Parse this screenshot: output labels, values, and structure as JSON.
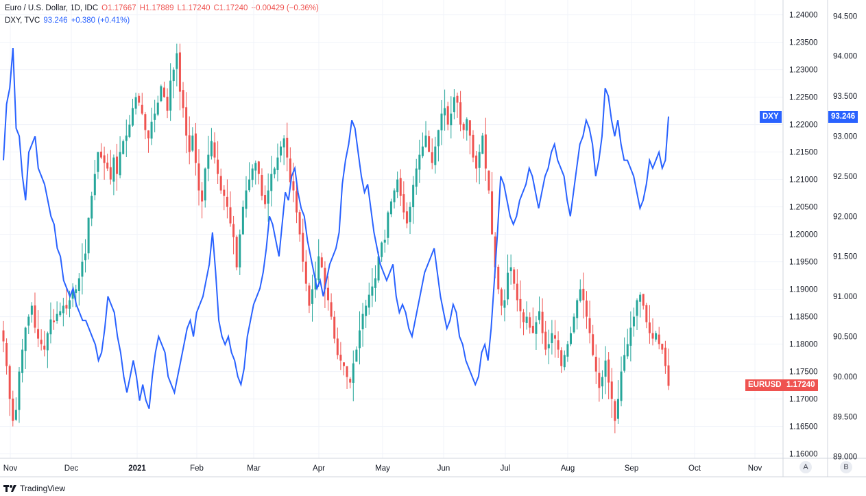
{
  "legend_eurusd": {
    "name": "Euro / U.S. Dollar, 1D, IDC",
    "open": "O1.17667",
    "high": "H1.17889",
    "low": "L1.17240",
    "close": "C1.17240",
    "change": "−0.00429 (−0.36%)"
  },
  "legend_dxy": {
    "name": "DXY, TVC",
    "value": "93.246",
    "change": "+0.380 (+0.41%)"
  },
  "tags": {
    "dxy_name": "DXY",
    "dxy_value": "93.246",
    "eurusd_name": "EURUSD",
    "eurusd_value": "1.17240"
  },
  "scale_buttons": {
    "a": "A",
    "b": "B"
  },
  "footer": {
    "brand": "TradingView"
  },
  "colors": {
    "up": "#26a69a",
    "down": "#ef5350",
    "dxy_line": "#2962ff",
    "grid": "#f0f3fa",
    "axis": "#d1d4dc"
  },
  "chart_data": {
    "type": "candlestick+line",
    "x_ticks": [
      "Nov",
      "Dec",
      "2021",
      "Feb",
      "Mar",
      "Apr",
      "May",
      "Jun",
      "Jul",
      "Aug",
      "Sep",
      "Oct",
      "Nov"
    ],
    "x_tick_bold": [
      "2021"
    ],
    "left_axis": {
      "ticks": [
        "1.24000",
        "1.23500",
        "1.23000",
        "1.22500",
        "1.22000",
        "1.21500",
        "1.21000",
        "1.20500",
        "1.20000",
        "1.19500",
        "1.19000",
        "1.18500",
        "1.18000",
        "1.17500",
        "1.17000",
        "1.16500",
        "1.16000"
      ],
      "range": [
        1.1592,
        1.2427
      ]
    },
    "right_axis": {
      "ticks": [
        "94.500",
        "94.000",
        "93.500",
        "93.000",
        "92.500",
        "92.000",
        "91.500",
        "91.000",
        "90.500",
        "90.000",
        "89.500",
        "89.000"
      ],
      "range": [
        88.98,
        94.7
      ]
    },
    "eurusd_closes": [
      1.1805,
      1.176,
      1.17,
      1.166,
      1.168,
      1.175,
      1.179,
      1.183,
      1.185,
      1.187,
      1.183,
      1.181,
      1.18,
      1.179,
      1.182,
      1.1845,
      1.184,
      1.1855,
      1.186,
      1.187,
      1.1865,
      1.188,
      1.1895,
      1.19,
      1.192,
      1.195,
      1.1965,
      1.203,
      1.207,
      1.211,
      1.215,
      1.214,
      1.213,
      1.212,
      1.21,
      1.214,
      1.211,
      1.215,
      1.217,
      1.218,
      1.22,
      1.223,
      1.225,
      1.224,
      1.222,
      1.219,
      1.2175,
      1.2205,
      1.222,
      1.224,
      1.227,
      1.225,
      1.2225,
      1.228,
      1.23,
      1.233,
      1.226,
      1.223,
      1.218,
      1.215,
      1.218,
      1.213,
      1.208,
      1.206,
      1.212,
      1.2145,
      1.217,
      1.214,
      1.211,
      1.208,
      1.207,
      1.205,
      1.202,
      1.1995,
      1.194,
      1.2,
      1.205,
      1.208,
      1.21,
      1.212,
      1.213,
      1.211,
      1.207,
      1.2055,
      1.208,
      1.211,
      1.212,
      1.214,
      1.216,
      1.2175,
      1.214,
      1.2095,
      1.208,
      1.204,
      1.2,
      1.195,
      1.191,
      1.187,
      1.19,
      1.192,
      1.196,
      1.194,
      1.19,
      1.188,
      1.185,
      1.181,
      1.178,
      1.177,
      1.176,
      1.174,
      1.173,
      1.1765,
      1.179,
      1.1825,
      1.1855,
      1.187,
      1.189,
      1.1905,
      1.192,
      1.196,
      1.1985,
      1.199,
      1.204,
      1.206,
      1.208,
      1.21,
      1.207,
      1.204,
      1.202,
      1.205,
      1.209,
      1.212,
      1.2145,
      1.216,
      1.218,
      1.215,
      1.213,
      1.216,
      1.219,
      1.222,
      1.223,
      1.22,
      1.222,
      1.225,
      1.224,
      1.22,
      1.219,
      1.221,
      1.218,
      1.214,
      1.212,
      1.215,
      1.218,
      1.212,
      1.208,
      1.2,
      1.194,
      1.19,
      1.187,
      1.188,
      1.193,
      1.194,
      1.191,
      1.188,
      1.186,
      1.184,
      1.185,
      1.183,
      1.182,
      1.184,
      1.186,
      1.182,
      1.179,
      1.18,
      1.182,
      1.181,
      1.179,
      1.176,
      1.178,
      1.18,
      1.182,
      1.185,
      1.188,
      1.19,
      1.188,
      1.185,
      1.182,
      1.178,
      1.175,
      1.172,
      1.174,
      1.177,
      1.173,
      1.17,
      1.166,
      1.17,
      1.175,
      1.178,
      1.18,
      1.183,
      1.185,
      1.188,
      1.189,
      1.187,
      1.184,
      1.182,
      1.181,
      1.182,
      1.18,
      1.179,
      1.176,
      1.1724
    ],
    "eurusd_last": 1.1724,
    "dxy_closes": [
      92.7,
      93.4,
      93.6,
      94.1,
      93.1,
      93.0,
      92.5,
      92.2,
      92.8,
      92.9,
      93.0,
      92.6,
      92.5,
      92.4,
      92.2,
      92.0,
      91.9,
      91.6,
      91.5,
      91.2,
      91.1,
      91.0,
      91.1,
      90.9,
      90.8,
      90.7,
      90.7,
      90.6,
      90.5,
      90.4,
      90.2,
      90.3,
      90.6,
      91.0,
      90.9,
      90.8,
      90.5,
      90.3,
      90.0,
      89.8,
      90.0,
      90.2,
      90.0,
      89.7,
      89.9,
      89.7,
      89.6,
      90.0,
      90.3,
      90.5,
      90.4,
      90.3,
      90.0,
      89.9,
      89.8,
      90.0,
      90.2,
      90.4,
      90.6,
      90.7,
      90.5,
      90.8,
      90.9,
      91.0,
      91.2,
      91.4,
      91.8,
      91.3,
      90.7,
      90.5,
      90.4,
      90.5,
      90.3,
      90.2,
      90.0,
      89.9,
      90.1,
      90.5,
      90.7,
      90.9,
      91.0,
      91.1,
      91.3,
      91.6,
      92.0,
      91.9,
      91.7,
      91.5,
      91.9,
      92.3,
      92.2,
      92.5,
      92.6,
      92.3,
      92.1,
      92.0,
      91.7,
      91.5,
      91.3,
      91.1,
      91.2,
      91.0,
      91.2,
      91.4,
      91.5,
      91.6,
      91.8,
      92.4,
      92.7,
      92.9,
      93.2,
      93.1,
      92.8,
      92.5,
      92.3,
      92.4,
      92.1,
      91.8,
      91.6,
      91.4,
      91.3,
      91.2,
      91.3,
      91.4,
      91.0,
      90.8,
      90.9,
      90.8,
      90.6,
      90.5,
      90.7,
      90.9,
      91.1,
      91.3,
      91.4,
      91.5,
      91.6,
      91.3,
      91.0,
      90.8,
      90.6,
      90.7,
      90.9,
      90.8,
      90.5,
      90.4,
      90.2,
      90.1,
      90.0,
      89.9,
      90.0,
      90.3,
      90.4,
      90.2,
      90.6,
      91.2,
      91.8,
      92.5,
      92.4,
      92.2,
      92.0,
      91.9,
      92.0,
      92.2,
      92.3,
      92.4,
      92.6,
      92.5,
      92.3,
      92.1,
      92.3,
      92.5,
      92.6,
      92.8,
      92.9,
      92.7,
      92.6,
      92.5,
      92.2,
      92.0,
      92.3,
      92.6,
      92.9,
      93.0,
      93.2,
      93.1,
      92.9,
      92.5,
      92.7,
      93.0,
      93.6,
      93.5,
      93.2,
      93.0,
      93.2,
      92.9,
      92.7,
      92.7,
      92.6,
      92.5,
      92.3,
      92.1,
      92.2,
      92.4,
      92.7,
      92.6,
      92.7,
      92.8,
      92.6,
      92.7,
      93.246
    ],
    "dxy_last": 93.246
  }
}
